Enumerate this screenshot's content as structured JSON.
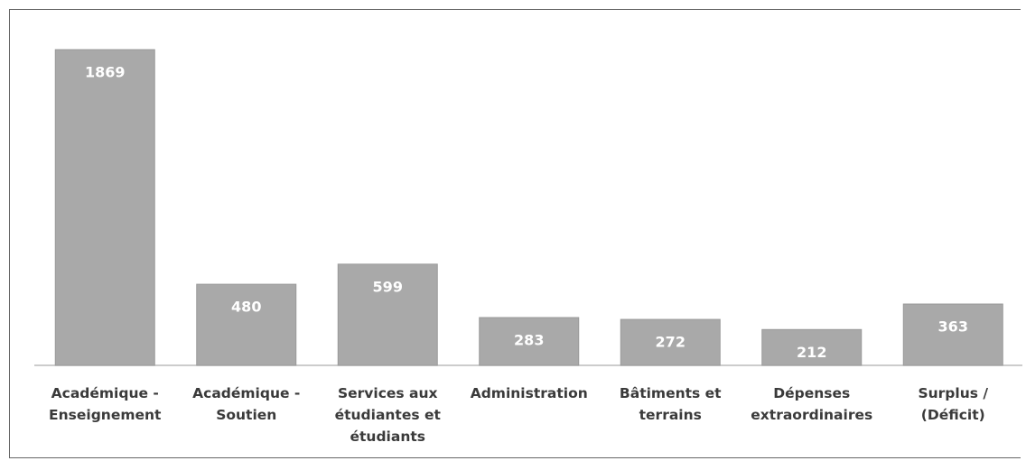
{
  "chart_data": {
    "type": "bar",
    "categories": [
      "Académique - Enseignement",
      "Académique - Soutien",
      "Services aux étudiantes et étudiants",
      "Administration",
      "Bâtiments et terrains",
      "Dépenses extraordinaires",
      "Surplus / (Déficit)"
    ],
    "values": [
      1869,
      480,
      599,
      283,
      272,
      212,
      363
    ],
    "color": "#a9a9a9"
  }
}
